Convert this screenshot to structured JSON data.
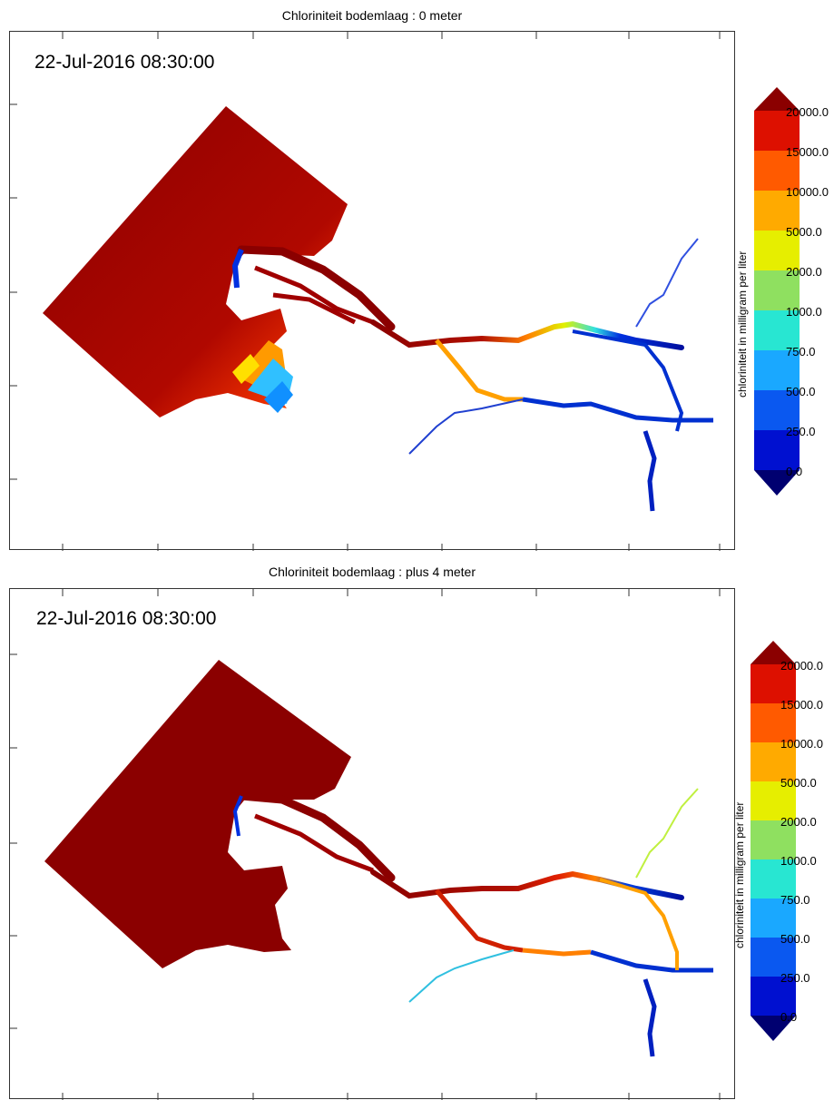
{
  "panels": [
    {
      "title": "Chloriniteit bodemlaag : 0 meter",
      "timestamp": "22-Jul-2016 08:30:00"
    },
    {
      "title": "Chloriniteit bodemlaag : plus 4 meter",
      "timestamp": "22-Jul-2016 08:30:00"
    }
  ],
  "colorbar": {
    "unit_label": "chloriniteit in milligram per liter",
    "levels": [
      "20000.0",
      "15000.0",
      "10000.0",
      "5000.0",
      "2000.0",
      "1000.0",
      "750.0",
      "500.0",
      "250.0",
      "0.0"
    ],
    "colors": [
      "#8b0000",
      "#dd1000",
      "#ff5a00",
      "#ffaa00",
      "#e6ee00",
      "#8fe060",
      "#28e6d2",
      "#1aa8ff",
      "#0a58f0",
      "#0010d0",
      "#000070"
    ]
  }
}
